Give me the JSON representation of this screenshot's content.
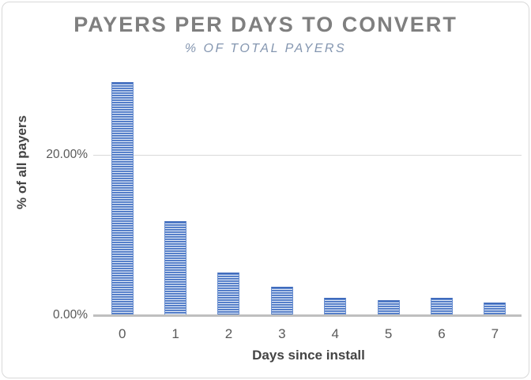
{
  "chart_data": {
    "type": "bar",
    "title": "PAYERS PER DAYS TO CONVERT",
    "subtitle": "% OF TOTAL PAYERS",
    "xlabel": "Days since install",
    "ylabel": "% of all payers",
    "categories": [
      "0",
      "1",
      "2",
      "3",
      "4",
      "5",
      "6",
      "7"
    ],
    "values": [
      29.0,
      11.6,
      5.2,
      3.5,
      2.1,
      1.8,
      2.1,
      1.5
    ],
    "value_unit": "percent",
    "ylim": [
      0,
      30
    ],
    "yticks": [
      {
        "value": 0,
        "label": "0.00%"
      },
      {
        "value": 20,
        "label": "20.00%"
      }
    ],
    "gridlines": [
      20
    ],
    "legend": "none",
    "grid": "horizontal-major-only",
    "bar_fill_pattern": "horizontal-stripes",
    "colors": {
      "bar_primary": "#4472C4",
      "bar_stripe_dark": "#3E69BA",
      "bar_stripe_mid": "#7FA0DC",
      "bar_stripe_light": "#EFF4FC",
      "bar_edge": "#6A8FD0",
      "title": "#7F7F7F",
      "subtitle": "#8496B0",
      "tick_label": "#595959",
      "axis_title": "#444444",
      "axis_line": "#BFBFBF",
      "gridline": "#D9D9D9",
      "frame_border": "#D9D9D9",
      "background": "#FFFFFF"
    }
  }
}
